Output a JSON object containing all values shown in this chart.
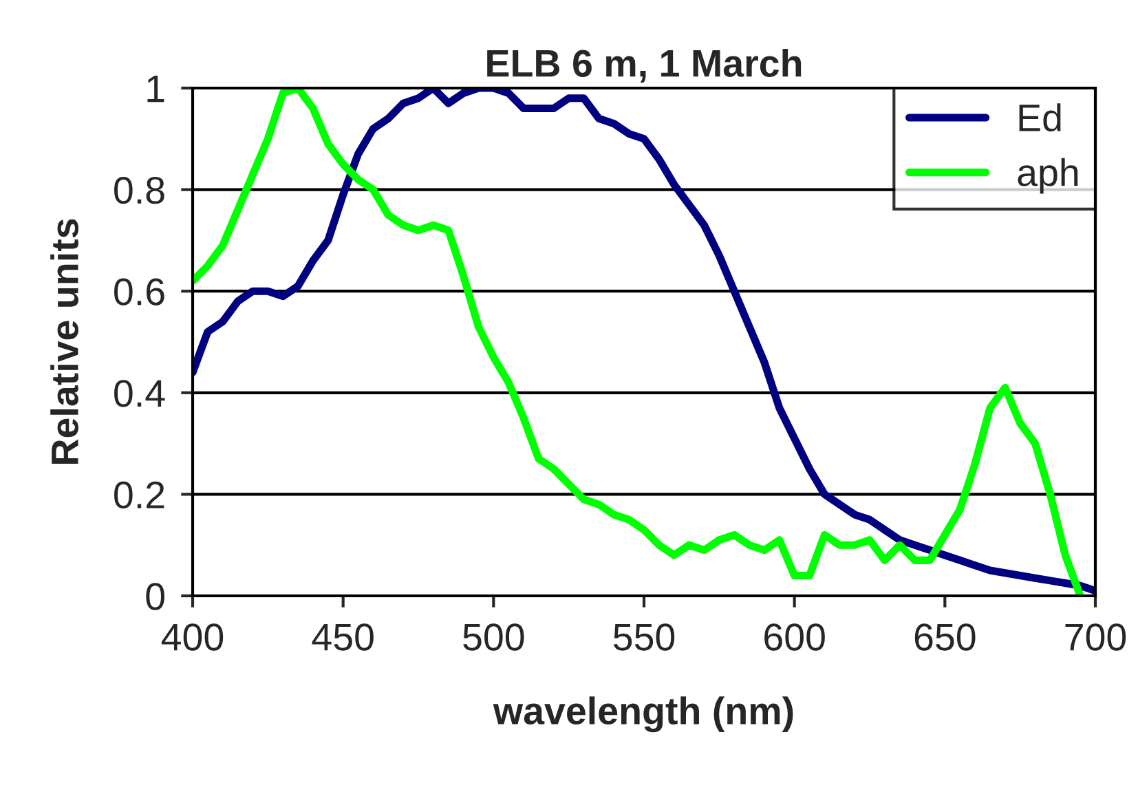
{
  "chart_data": {
    "type": "line",
    "title": "ELB 6 m, 1 March",
    "xlabel": "wavelength (nm)",
    "ylabel": "Relative units",
    "x": [
      400,
      405,
      410,
      415,
      420,
      425,
      430,
      435,
      440,
      445,
      450,
      455,
      460,
      465,
      470,
      475,
      480,
      485,
      490,
      495,
      500,
      505,
      510,
      515,
      520,
      525,
      530,
      535,
      540,
      545,
      550,
      555,
      560,
      565,
      570,
      575,
      580,
      585,
      590,
      595,
      600,
      605,
      610,
      615,
      620,
      625,
      630,
      635,
      640,
      645,
      650,
      655,
      660,
      665,
      670,
      675,
      680,
      685,
      690,
      695,
      700
    ],
    "series": [
      {
        "name": "Ed",
        "color": "#000080",
        "values": [
          0.44,
          0.52,
          0.54,
          0.58,
          0.6,
          0.6,
          0.59,
          0.61,
          0.66,
          0.7,
          0.79,
          0.87,
          0.92,
          0.94,
          0.97,
          0.98,
          1.0,
          0.97,
          0.99,
          1.0,
          1.0,
          0.99,
          0.96,
          0.96,
          0.96,
          0.98,
          0.98,
          0.94,
          0.93,
          0.91,
          0.9,
          0.86,
          0.81,
          0.77,
          0.73,
          0.67,
          0.6,
          0.53,
          0.46,
          0.37,
          0.31,
          0.25,
          0.2,
          0.18,
          0.16,
          0.15,
          0.13,
          0.11,
          0.1,
          0.09,
          0.08,
          0.07,
          0.06,
          0.05,
          0.045,
          0.04,
          0.035,
          0.03,
          0.025,
          0.02,
          0.01
        ]
      },
      {
        "name": "aph",
        "color": "#00ff00",
        "values": [
          0.62,
          0.65,
          0.69,
          0.76,
          0.83,
          0.9,
          0.99,
          1.0,
          0.96,
          0.89,
          0.85,
          0.82,
          0.8,
          0.75,
          0.73,
          0.72,
          0.73,
          0.72,
          0.63,
          0.53,
          0.47,
          0.42,
          0.35,
          0.27,
          0.25,
          0.22,
          0.19,
          0.18,
          0.16,
          0.15,
          0.13,
          0.1,
          0.08,
          0.1,
          0.09,
          0.11,
          0.12,
          0.1,
          0.09,
          0.11,
          0.04,
          0.04,
          0.12,
          0.1,
          0.1,
          0.11,
          0.07,
          0.1,
          0.07,
          0.07,
          0.12,
          0.17,
          0.26,
          0.37,
          0.41,
          0.34,
          0.3,
          0.2,
          0.08,
          0.0,
          null
        ]
      }
    ],
    "xlim": [
      400,
      700
    ],
    "xticks": [
      400,
      450,
      500,
      550,
      600,
      650,
      700
    ],
    "ylim": [
      0,
      1
    ],
    "yticks": [
      0,
      0.2,
      0.4,
      0.6,
      0.8,
      1
    ],
    "grid": "y",
    "legend": "top right",
    "line_style": "solid",
    "marker": "none"
  }
}
